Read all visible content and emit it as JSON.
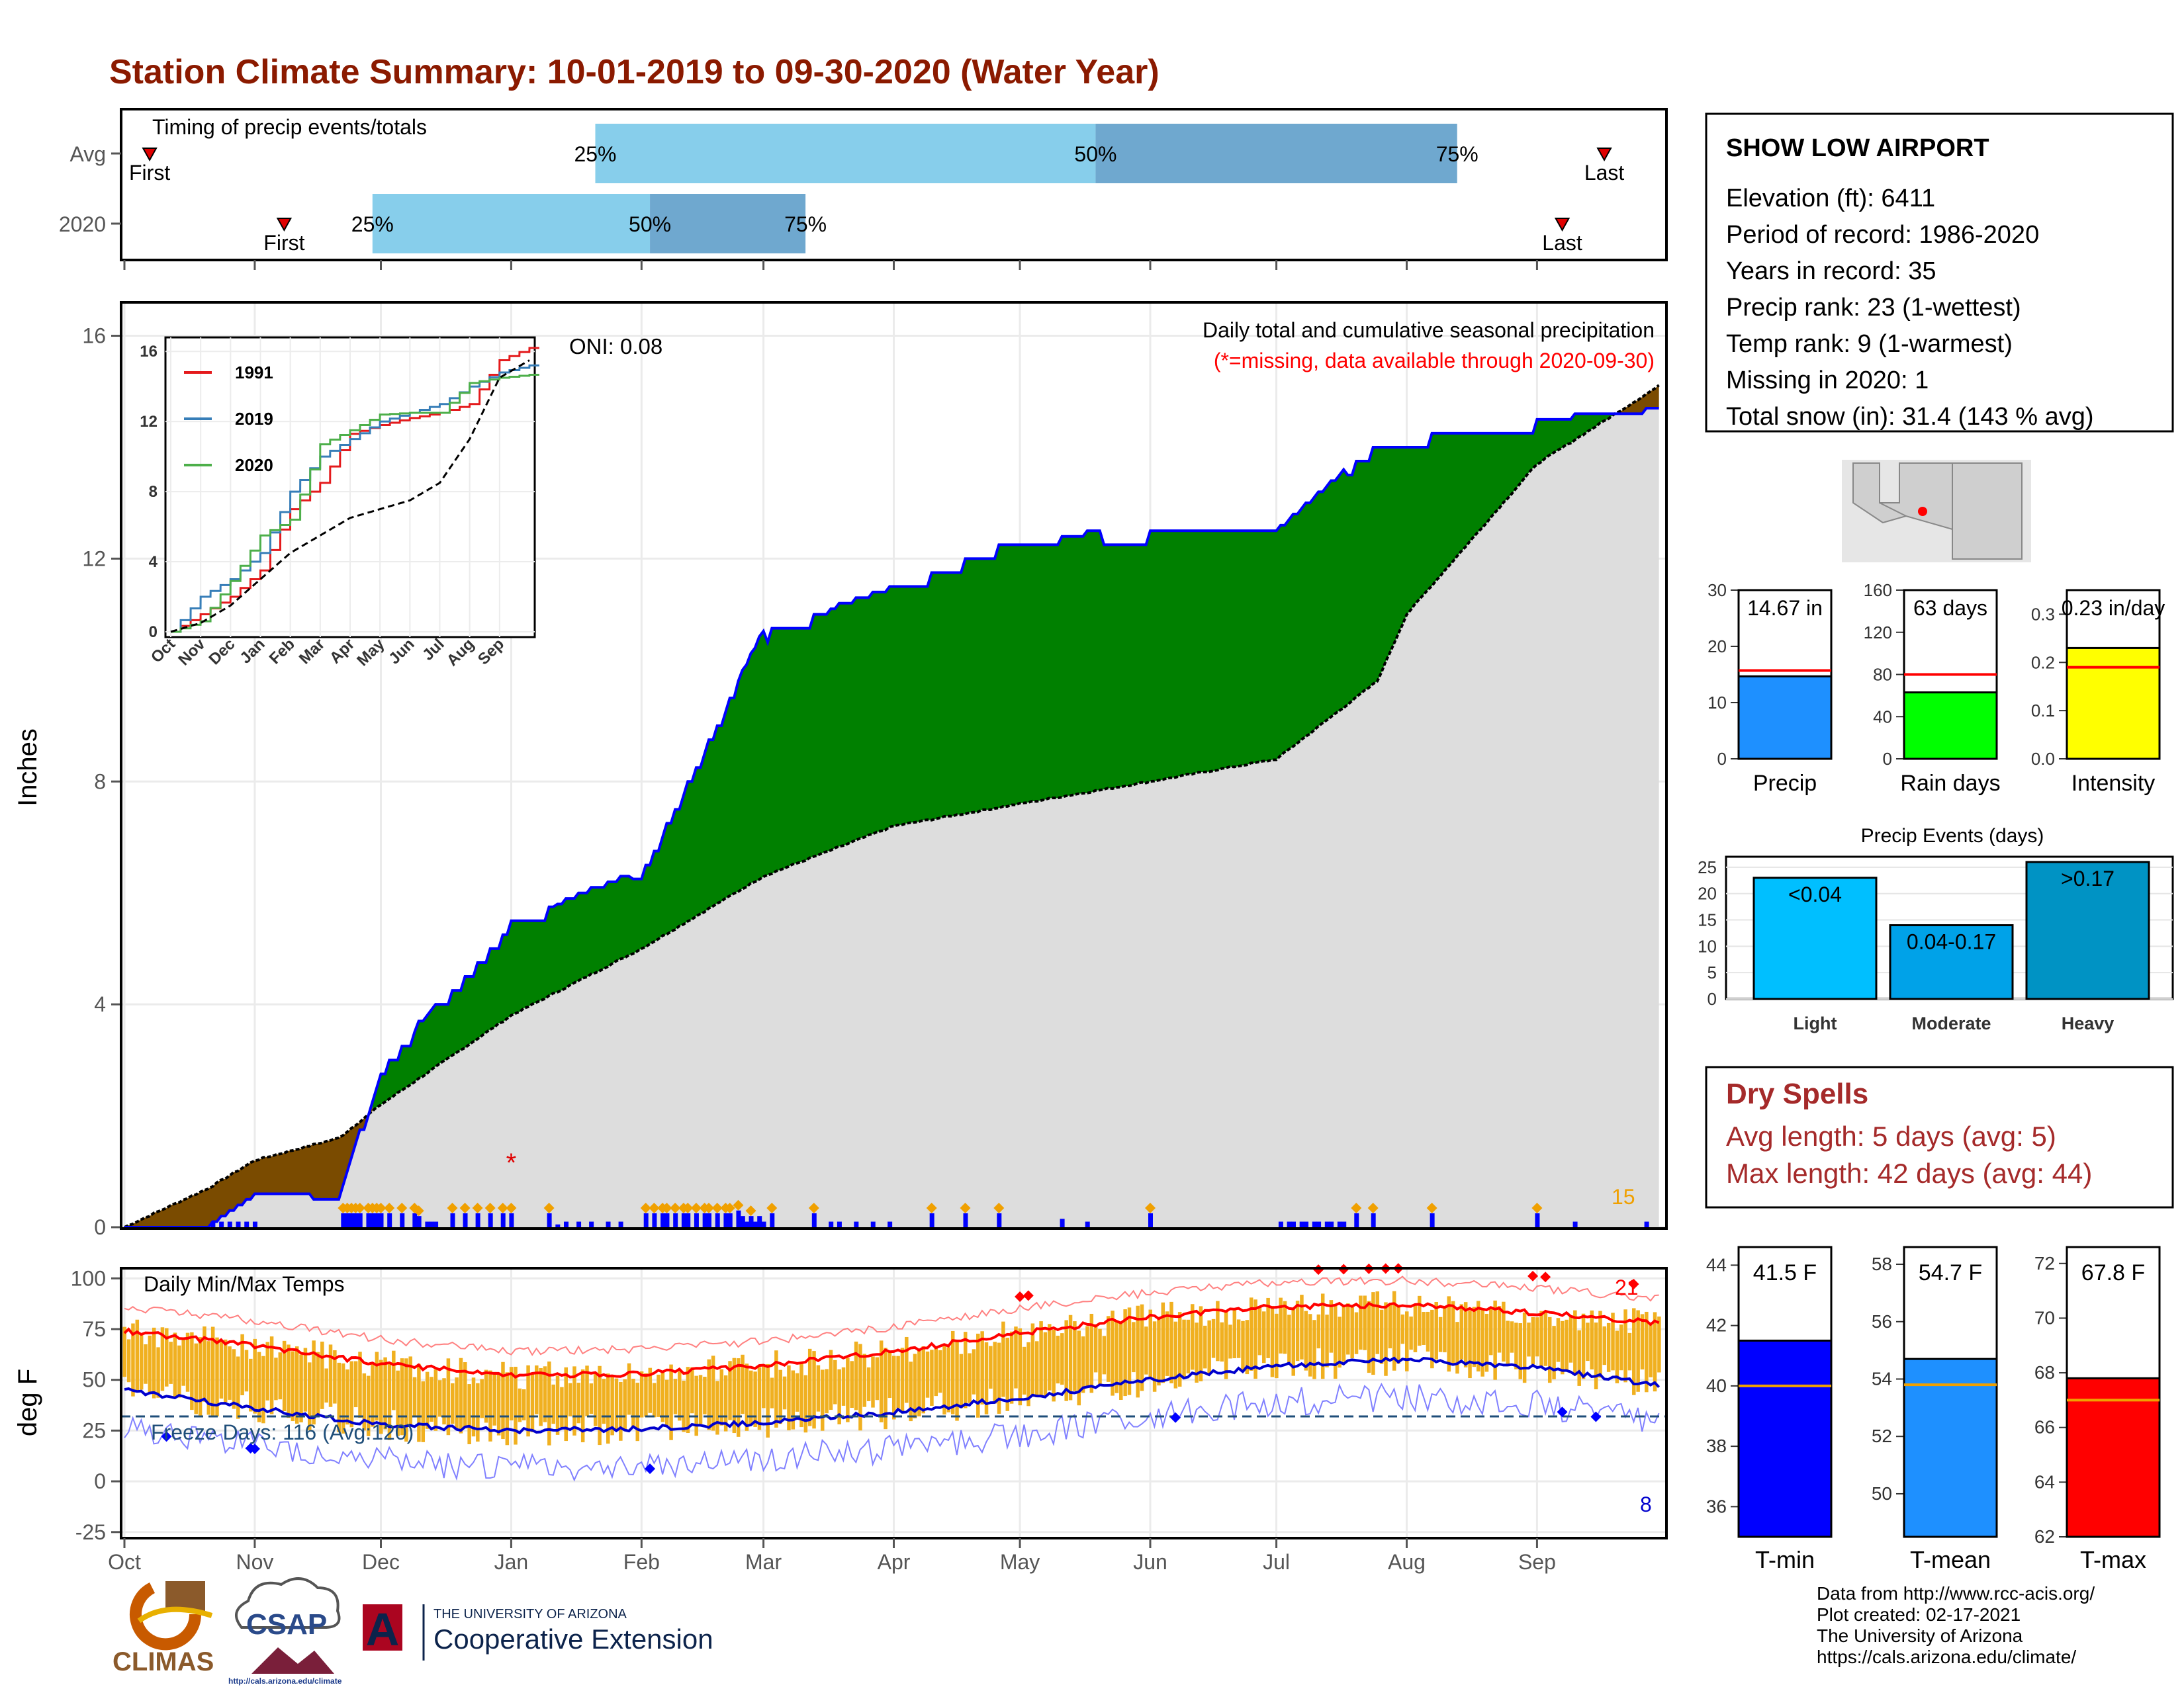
{
  "title": "Station Climate Summary: 10-01-2019 to 09-30-2020 (Water Year)",
  "colors": {
    "title": "#8b1a00",
    "cum_station": "#008000",
    "cum_avg": "#dddddd",
    "deficit": "#7a4b00",
    "daily": "#0000ff",
    "dry_spell": "#a52a2a",
    "tmax_line": "#ff0000",
    "tmin_line": "#0000cd",
    "temp_bar": "#f0b020",
    "freeze": "#1f4e79"
  },
  "timing": {
    "header": "Timing of precip events/totals",
    "rows": [
      {
        "label": "Avg",
        "first": "First",
        "last": "Last",
        "p25": "25%",
        "p50": "50%",
        "p75": "75%",
        "first_day": 6,
        "last_day": 352,
        "q25_day": 112,
        "q50_day": 231,
        "q75_day": 317
      },
      {
        "label": "2020",
        "first": "First",
        "last": "Last",
        "p25": "25%",
        "p50": "50%",
        "p75": "75%",
        "first_day": 38,
        "last_day": 342,
        "q25_day": 59,
        "q50_day": 125,
        "q75_day": 162
      }
    ]
  },
  "precip_panel": {
    "ylabel": "Inches",
    "heading": "Daily total and cumulative seasonal precipitation",
    "missing_note": "(*=missing, data available through 2020-09-30)",
    "oni": "ONI: 0.08",
    "count_label": "15",
    "yticks": [
      "0",
      "4",
      "8",
      "12",
      "16"
    ]
  },
  "inset": {
    "legend": [
      "1991",
      "2019",
      "2020"
    ],
    "yticks": [
      "0",
      "4",
      "8",
      "12",
      "16"
    ],
    "xticks": [
      "Oct",
      "Nov",
      "Dec",
      "Jan",
      "Feb",
      "Mar",
      "Apr",
      "May",
      "Jun",
      "Jul",
      "Aug",
      "Sep"
    ]
  },
  "temp_panel": {
    "ylabel": "deg F",
    "heading": "Daily Min/Max Temps",
    "freeze": "Freeze Days: 116 (Avg:120)",
    "hot_count": "21",
    "cold_count": "8",
    "yticks": [
      "-25",
      "0",
      "25",
      "50",
      "75",
      "100"
    ]
  },
  "months": [
    "Oct",
    "Nov",
    "Dec",
    "Jan",
    "Feb",
    "Mar",
    "Apr",
    "May",
    "Jun",
    "Jul",
    "Aug",
    "Sep"
  ],
  "station": {
    "name": "SHOW LOW AIRPORT",
    "lines": [
      "Elevation (ft): 6411",
      "Period of record: 1986-2020",
      "Years in record: 35",
      "Precip rank: 23 (1-wettest)",
      "Temp rank: 9 (1-warmest)",
      "Missing in 2020: 1",
      "Total snow (in): 31.4 (143 % avg)"
    ]
  },
  "mini_bars": [
    {
      "label": "Precip",
      "value_text": "14.67 in",
      "value": 14.67,
      "avg": 15.7,
      "ymax": 30,
      "yticks": [
        "0",
        "10",
        "20",
        "30"
      ],
      "color": "#1e90ff"
    },
    {
      "label": "Rain days",
      "value_text": "63 days",
      "value": 63,
      "avg": 80,
      "ymax": 160,
      "yticks": [
        "0",
        "40",
        "80",
        "120",
        "160"
      ],
      "color": "#00ff00"
    },
    {
      "label": "Intensity",
      "value_text": "0.23 in/day",
      "value": 0.23,
      "avg": 0.19,
      "ymax": 0.35,
      "yticks": [
        "0.0",
        "0.1",
        "0.2",
        "0.3"
      ],
      "color": "#ffff00"
    }
  ],
  "events": {
    "title": "Precip Events (days)",
    "yticks": [
      "0",
      "5",
      "10",
      "15",
      "20",
      "25"
    ],
    "bars": [
      {
        "cat": "Light",
        "label": "<0.04",
        "value": 23,
        "color": "#00bfff"
      },
      {
        "cat": "Moderate",
        "label": "0.04-0.17",
        "value": 14,
        "color": "#00a2e8"
      },
      {
        "cat": "Heavy",
        "label": ">0.17",
        "value": 26,
        "color": "#0093c4"
      }
    ]
  },
  "dry_spells": {
    "title": "Dry Spells",
    "avg": "Avg length: 5 days (avg: 5)",
    "max": "Max length: 42 days (avg: 44)"
  },
  "temp_bars": [
    {
      "label": "T-min",
      "value_text": "41.5 F",
      "value": 41.5,
      "avg": 40.0,
      "ymin": 35,
      "ymax": 44.6,
      "yticks": [
        "36",
        "38",
        "40",
        "42",
        "44"
      ],
      "color": "#0000ff"
    },
    {
      "label": "T-mean",
      "value_text": "54.7 F",
      "value": 54.7,
      "avg": 53.8,
      "ymin": 48.5,
      "ymax": 58.6,
      "yticks": [
        "50",
        "52",
        "54",
        "56",
        "58"
      ],
      "color": "#1e90ff"
    },
    {
      "label": "T-max",
      "value_text": "67.8 F",
      "value": 67.8,
      "avg": 67.0,
      "ymin": 62,
      "ymax": 72.6,
      "yticks": [
        "62",
        "64",
        "66",
        "68",
        "70",
        "72"
      ],
      "color": "#ff0000"
    }
  ],
  "logos": {
    "climas": "CLIMAS",
    "csap": "CSAP",
    "csap_url": "http://cals.arizona.edu/climate",
    "ua_small": "THE UNIVERSITY OF ARIZONA",
    "ua_big": "Cooperative Extension"
  },
  "footer": [
    "Data from http://www.rcc-acis.org/",
    "Plot created: 02-17-2021",
    "The University of Arizona",
    "https://cals.arizona.edu/climate/"
  ],
  "chart_data": [
    {
      "type": "area",
      "title": "Daily total and cumulative seasonal precipitation",
      "xlabel": "",
      "ylabel": "Inches",
      "ylim": [
        0,
        16.5
      ],
      "x": [
        "Oct 1",
        "Oct 21",
        "Nov 1",
        "Nov 21",
        "Dec 1",
        "Jan 1",
        "Feb 1",
        "Mar 1",
        "Apr 1",
        "May 1",
        "Jun 1",
        "Jul 1",
        "Jul 25",
        "Aug 1",
        "Sep 1",
        "Sep 30"
      ],
      "series": [
        {
          "name": "",
          "values": [
            0,
            0,
            0.6,
            0.6,
            2.9,
            5.5,
            6.4,
            10.7,
            11.5,
            12.4,
            12.5,
            12.5,
            14.1,
            14.2,
            14.5,
            14.67
          ]
        },
        {
          "name": "",
          "values": [
            0,
            0.7,
            1.2,
            1.6,
            2.2,
            3.8,
            5.0,
            6.3,
            7.2,
            7.6,
            8.0,
            8.4,
            9.8,
            11.0,
            13.7,
            15.1
          ]
        }
      ]
    },
    {
      "type": "line",
      "title": "",
      "xlabel": "",
      "ylabel": "",
      "ylim": [
        0,
        16.5
      ],
      "x": [
        "Oct",
        "Nov",
        "Dec",
        "Jan",
        "Feb",
        "Mar",
        "Apr",
        "May",
        "Jun",
        "Jul",
        "Aug",
        "Sep",
        "Oct"
      ],
      "series": [
        {
          "name": "1991",
          "values": [
            0,
            1.0,
            2.0,
            3.5,
            7.0,
            8.5,
            11.3,
            11.8,
            12.2,
            12.5,
            13.0,
            15.5,
            16.2
          ]
        },
        {
          "name": "2019",
          "values": [
            0,
            2.0,
            3.0,
            4.5,
            8.0,
            10.0,
            11.0,
            12.0,
            12.5,
            13.0,
            14.0,
            14.8,
            15.2
          ]
        },
        {
          "name": "2020",
          "values": [
            0,
            0.6,
            2.9,
            5.5,
            6.4,
            10.7,
            11.5,
            12.4,
            12.5,
            12.5,
            14.2,
            14.5,
            14.67
          ]
        },
        {
          "name": "",
          "values": [
            0,
            0.5,
            1.5,
            3.0,
            4.5,
            5.5,
            6.5,
            7.0,
            7.5,
            8.5,
            11.0,
            14.5,
            15.5
          ]
        }
      ]
    },
    {
      "type": "line",
      "title": "Daily Min/Max Temps",
      "xlabel": "",
      "ylabel": "deg F",
      "ylim": [
        -28,
        105
      ],
      "x": [
        "Oct",
        "Nov",
        "Dec",
        "Jan",
        "Feb",
        "Mar",
        "Apr",
        "May",
        "Jun",
        "Jul",
        "Aug",
        "Sep",
        "Oct"
      ],
      "series": [
        {
          "name": "",
          "values": [
            74,
            67,
            58,
            52,
            53,
            57,
            64,
            73,
            81,
            86,
            87,
            83,
            78
          ]
        },
        {
          "name": "",
          "values": [
            45,
            36,
            28,
            25,
            26,
            29,
            34,
            41,
            50,
            57,
            60,
            56,
            47
          ]
        }
      ]
    },
    {
      "type": "bar",
      "title": "",
      "categories": [
        "Precip",
        "Rain days",
        "Intensity"
      ],
      "values": [
        14.67,
        63,
        0.23
      ]
    },
    {
      "type": "bar",
      "title": "Precip Events (days)",
      "categories": [
        "Light",
        "Moderate",
        "Heavy"
      ],
      "values": [
        23,
        14,
        26
      ]
    },
    {
      "type": "bar",
      "title": "",
      "categories": [
        "T-min",
        "T-mean",
        "T-max"
      ],
      "values": [
        41.5,
        54.7,
        67.8
      ]
    }
  ]
}
